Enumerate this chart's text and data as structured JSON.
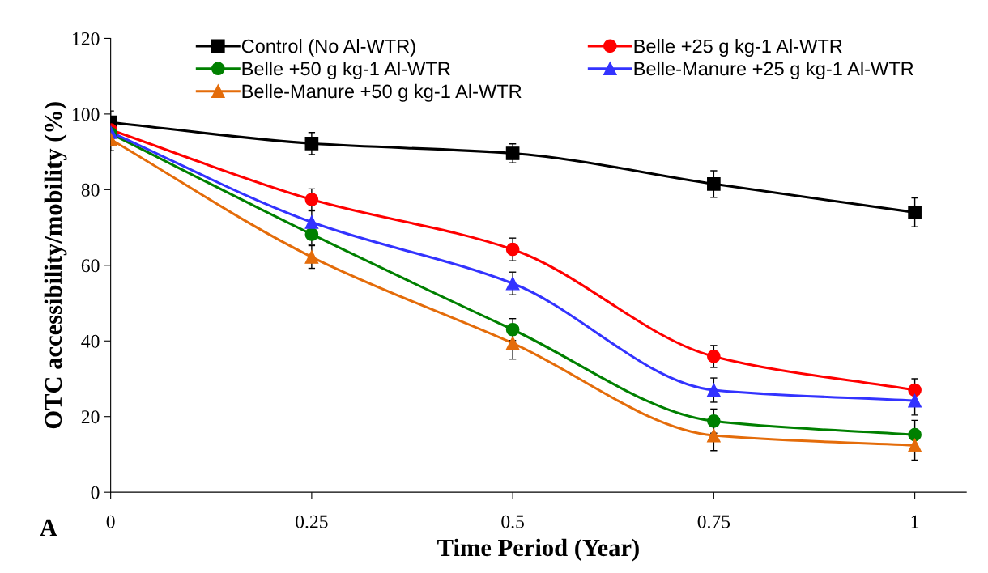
{
  "chart_data": {
    "type": "line",
    "xlabel": "Time Period (Year)",
    "ylabel": "OTC accessibility/mobility (%)",
    "x": [
      0,
      0.25,
      0.5,
      0.75,
      1
    ],
    "xlim": [
      0,
      1.064
    ],
    "xticks": [
      0,
      0.25,
      0.5,
      0.75,
      1
    ],
    "ylim": [
      0,
      120
    ],
    "yticks": [
      0,
      20,
      40,
      60,
      80,
      100,
      120
    ],
    "grid": false,
    "legend": "top",
    "annotations": [
      "A"
    ],
    "series": [
      {
        "name": "Control (No Al-WTR)",
        "color": "#000000",
        "marker": "square",
        "values": [
          97.8,
          92.2,
          89.6,
          81.5,
          74.0
        ],
        "errors": [
          3,
          2.9,
          2.5,
          3.5,
          3.8
        ]
      },
      {
        "name": "Belle +25 g kg-1 Al-WTR",
        "color": "#ff0000",
        "marker": "circle",
        "values": [
          95.8,
          77.4,
          64.2,
          35.9,
          27.0
        ],
        "errors": [
          3,
          2.8,
          3,
          2.9,
          3
        ]
      },
      {
        "name": "Belle +50 g kg-1 Al-WTR",
        "color": "#008000",
        "marker": "circle",
        "values": [
          94.8,
          68.2,
          43.0,
          18.8,
          15.2
        ],
        "errors": [
          3,
          2.7,
          2.9,
          3.2,
          3.8
        ]
      },
      {
        "name": "Belle-Manure +25 g kg-1 Al-WTR",
        "color": "#3333ff",
        "marker": "triangle",
        "values": [
          95.2,
          71.4,
          55.2,
          27.0,
          24.2
        ],
        "errors": [
          3,
          3,
          3,
          3.2,
          3.8
        ]
      },
      {
        "name": "Belle-Manure +50 g kg-1 Al-WTR",
        "color": "#e46c0a",
        "marker": "triangle",
        "values": [
          93.3,
          62.2,
          39.4,
          15.0,
          12.4
        ],
        "errors": [
          3,
          3,
          4.2,
          4,
          3.9
        ]
      }
    ]
  }
}
